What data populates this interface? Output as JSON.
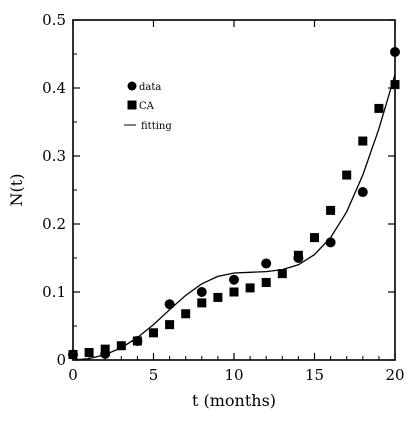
{
  "chart_data": {
    "type": "scatter",
    "xlabel": "t (months)",
    "ylabel": "N(t)",
    "xlim": [
      0,
      20
    ],
    "ylim": [
      0,
      0.5
    ],
    "xticks": [
      0,
      5,
      10,
      15,
      20
    ],
    "yticks": [
      0,
      0.1,
      0.2,
      0.3,
      0.4,
      0.5
    ],
    "xtick_labels": [
      "0",
      "5",
      "10",
      "15",
      "20"
    ],
    "ytick_labels": [
      "0",
      "0.1",
      "0.2",
      "0.3",
      "0.4",
      "0.5"
    ],
    "grid": false,
    "legend_position": "top-left",
    "series": [
      {
        "name": "data",
        "marker": "circle",
        "x": [
          0,
          2,
          4,
          6,
          8,
          10,
          12,
          14,
          16,
          18,
          20
        ],
        "y": [
          0.008,
          0.009,
          0.028,
          0.082,
          0.1,
          0.118,
          0.142,
          0.15,
          0.173,
          0.247,
          0.453
        ]
      },
      {
        "name": "CA",
        "marker": "square",
        "x": [
          0,
          1,
          2,
          3,
          4,
          5,
          6,
          7,
          8,
          9,
          10,
          11,
          12,
          13,
          14,
          15,
          16,
          17,
          18,
          19,
          20
        ],
        "y": [
          0.008,
          0.011,
          0.016,
          0.021,
          0.028,
          0.04,
          0.052,
          0.068,
          0.084,
          0.092,
          0.1,
          0.106,
          0.114,
          0.127,
          0.154,
          0.18,
          0.22,
          0.272,
          0.322,
          0.37,
          0.405
        ]
      },
      {
        "name": "fitting",
        "marker": "line",
        "x": [
          0,
          1,
          2,
          3,
          4,
          5,
          6,
          7,
          8,
          9,
          10,
          11,
          12,
          13,
          14,
          15,
          16,
          17,
          18,
          19,
          20
        ],
        "y": [
          0.0,
          0.002,
          0.008,
          0.018,
          0.033,
          0.052,
          0.074,
          0.095,
          0.112,
          0.123,
          0.128,
          0.129,
          0.13,
          0.133,
          0.14,
          0.155,
          0.18,
          0.218,
          0.272,
          0.34,
          0.42
        ]
      }
    ]
  }
}
